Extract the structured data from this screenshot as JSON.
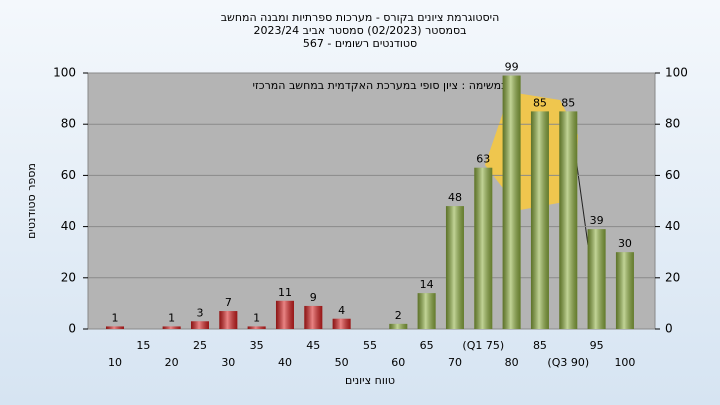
{
  "chart_data": {
    "type": "bar",
    "title": "היסטוגרמת ציונים בקורס - מערכות ספרתיות ומבנה המחשב",
    "subtitle": "בסמסטר  (02/2023)  סמסטר אביב 2023/24",
    "subtitle2": "סטודנטים רשומים - 567",
    "annotation": "במשימה : ציון סופי במערכת האקדמית במחשב המרכזי",
    "x_label": "טווח ציונים",
    "y_label": "מספר סטודנטים",
    "categories": [
      "10",
      "15",
      "20",
      "25",
      "30",
      "35",
      "40",
      "45",
      "50",
      "55",
      "60",
      "65",
      "70",
      "(Q1 75)",
      "80",
      "85",
      "(Q3 90)",
      "95",
      "100"
    ],
    "values": [
      1,
      null,
      1,
      3,
      7,
      1,
      11,
      9,
      4,
      null,
      2,
      14,
      48,
      63,
      99,
      85,
      85,
      39,
      30
    ],
    "colors": [
      "#d82020",
      "#d82020",
      "#d82020",
      "#d82020",
      "#d82020",
      "#d82020",
      "#d82020",
      "#d82020",
      "#d82020",
      "#d82020",
      "#8fb040",
      "#8fb040",
      "#8fb040",
      "#8fb040",
      "#8fb040",
      "#8fb040",
      "#8fb040",
      "#8fb040",
      "#8fb040"
    ],
    "ylim": [
      0,
      100
    ],
    "yticks": [
      0,
      20,
      40,
      60,
      80,
      100
    ],
    "y2lim": [
      0,
      100
    ],
    "y2ticks": [
      0,
      20,
      40,
      60,
      80,
      100
    ],
    "grid": true
  }
}
